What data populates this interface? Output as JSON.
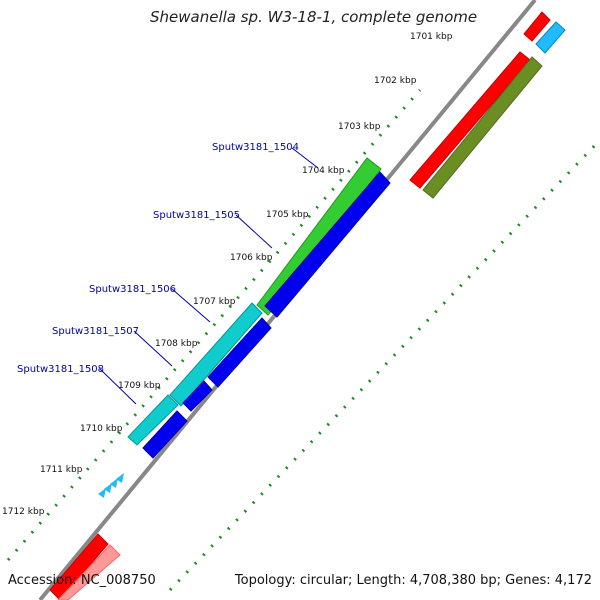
{
  "title": "Shewanella sp. W3-18-1, complete genome",
  "accession": "Accession: NC_008750",
  "summary": "Topology: circular; Length: 4,708,380 bp; Genes: 4,172",
  "kbp_labels": [
    "1701 kbp",
    "1702 kbp",
    "1703 kbp",
    "1704 kbp",
    "1705 kbp",
    "1706 kbp",
    "1707 kbp",
    "1708 kbp",
    "1709 kbp",
    "1710 kbp",
    "1711 kbp",
    "1712 kbp"
  ],
  "gene_labels": [
    "Sputw3181_1504",
    "Sputw3181_1505",
    "Sputw3181_1506",
    "Sputw3181_1507",
    "Sputw3181_1508"
  ],
  "colors": {
    "backbone": "#888888",
    "tick": "#228b22",
    "gene_green": "#33cc33",
    "gene_cyan": "#11cccc",
    "gene_blue": "#0000ee",
    "gene_red": "#ff0000",
    "gene_olive": "#6b8e23",
    "gene_lightblue": "#22bbff",
    "gene_pink": "#ff9999",
    "label": "#0000aa"
  }
}
